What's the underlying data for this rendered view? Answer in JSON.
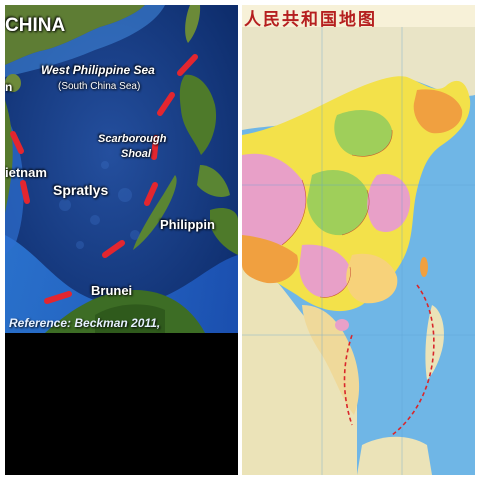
{
  "left_map": {
    "labels": {
      "china": "CHINA",
      "west_philippine_sea": "West Philippine Sea",
      "south_china_sea": "(South China Sea)",
      "scarborough_line1": "Scarborough",
      "scarborough_line2": "Shoal",
      "vietnam": "ietnam",
      "spratlys": "Spratlys",
      "philippines": "Philippin",
      "brunei": "Brunei",
      "left_edge_fragment": "n"
    },
    "reference": "Reference: Beckman 2011,",
    "colors": {
      "sea_deep": "#0d2c6b",
      "sea_shallow": "#2f6fd6",
      "land": "#4f7a2e",
      "nine_dash_line": "#e3262f"
    }
  },
  "right_map": {
    "title": "人民共和国地图",
    "colors": {
      "sea": "#6fb6e6",
      "china_provinces": [
        "#f3e14a",
        "#e8a0c8",
        "#f0a040",
        "#9fcf5a",
        "#f7d27a"
      ],
      "neighbors": "#e9e4c6",
      "border_red": "#d9262b"
    }
  }
}
